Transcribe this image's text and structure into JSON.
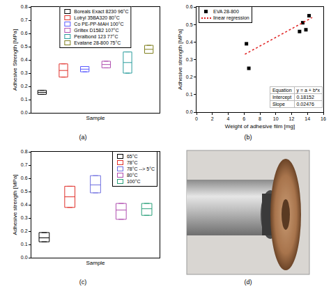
{
  "chart_data": [
    {
      "type": "box",
      "caption": "(a)",
      "xlabel": "Sample",
      "ylabel": "Adhesive Strength [MPa]",
      "ylim": [
        0,
        0.8
      ],
      "yticks": [
        {
          "value": 0,
          "label": "0.0"
        },
        0.1,
        0.2,
        0.3,
        0.4,
        0.5,
        0.6,
        0.7,
        0.8
      ],
      "grid": false,
      "legend": "upper center",
      "tick_labels": "y",
      "series": [
        {
          "name": "Boreals Exact 8230 96°C",
          "color": "#000000",
          "q1": 0.14,
          "median": 0.155,
          "q3": 0.17
        },
        {
          "name": "Lotryl 35BA320 80°C",
          "color": "#e0302a",
          "q1": 0.27,
          "median": 0.32,
          "q3": 0.37
        },
        {
          "name": "Co PE-PP-MAH 100°C",
          "color": "#5a5aff",
          "q1": 0.31,
          "median": 0.33,
          "q3": 0.35
        },
        {
          "name": "Griltex D1582 107°C",
          "color": "#b050b0",
          "q1": 0.34,
          "median": 0.365,
          "q3": 0.39
        },
        {
          "name": "Peralbond 123 77°C",
          "color": "#2a9d9d",
          "q1": 0.3,
          "median": 0.38,
          "q3": 0.46
        },
        {
          "name": "Evatane 28-800 75°C",
          "color": "#808020",
          "q1": 0.45,
          "median": 0.48,
          "q3": 0.51
        }
      ]
    },
    {
      "type": "scatter",
      "caption": "(b)",
      "xlabel": "Weight of adhesive film [mg]",
      "ylabel": "Adhesive strength [MPa]",
      "xlim": [
        0,
        16
      ],
      "xticks": [
        0,
        2,
        4,
        6,
        8,
        10,
        12,
        14,
        16
      ],
      "ylim": [
        0,
        0.6
      ],
      "yticks": [
        {
          "value": 0,
          "label": "0.0"
        },
        0.1,
        0.2,
        0.3,
        0.4,
        0.5,
        0.6
      ],
      "grid": false,
      "legend": "upper left",
      "series": [
        {
          "name": "EVA 28-800",
          "type": "scatter",
          "marker": "square",
          "color": "#000000",
          "x": [
            6.3,
            6.6,
            13.0,
            13.4,
            13.8,
            14.2
          ],
          "values": [
            0.39,
            0.25,
            0.46,
            0.51,
            0.47,
            0.55
          ]
        },
        {
          "name": "linear regression",
          "type": "line",
          "line_style": "dotted",
          "color": "#e02020",
          "x": [
            6.1,
            14.6
          ],
          "values": [
            0.33,
            0.54
          ]
        }
      ],
      "table": {
        "rows": [
          [
            "Equation",
            "y = a + b*x"
          ],
          [
            "Intercept",
            "0.18152"
          ],
          [
            "Slope",
            "0.02476"
          ]
        ]
      }
    },
    {
      "type": "box",
      "caption": "(c)",
      "xlabel": "Sample",
      "ylabel": "Adhesive strength [MPa]",
      "ylim": [
        0,
        0.8
      ],
      "yticks": [
        {
          "value": 0,
          "label": "0.0"
        },
        0.1,
        0.2,
        0.3,
        0.4,
        0.5,
        0.6,
        0.7,
        0.8
      ],
      "grid": false,
      "legend": "upper right",
      "tick_labels": "y",
      "series": [
        {
          "name": "65°C",
          "color": "#000000",
          "q1": 0.12,
          "median": 0.15,
          "q3": 0.19
        },
        {
          "name": "78°C",
          "color": "#e0302a",
          "q1": 0.38,
          "median": 0.46,
          "q3": 0.54
        },
        {
          "name": "78°C --> 5°C",
          "color": "#7070e0",
          "q1": 0.49,
          "median": 0.55,
          "q3": 0.62
        },
        {
          "name": "80°C",
          "color": "#b050b0",
          "q1": 0.29,
          "median": 0.36,
          "q3": 0.41
        },
        {
          "name": "100°C",
          "color": "#2aa07a",
          "q1": 0.32,
          "median": 0.37,
          "q3": 0.41
        }
      ]
    }
  ],
  "image": {
    "caption": "(d)"
  }
}
